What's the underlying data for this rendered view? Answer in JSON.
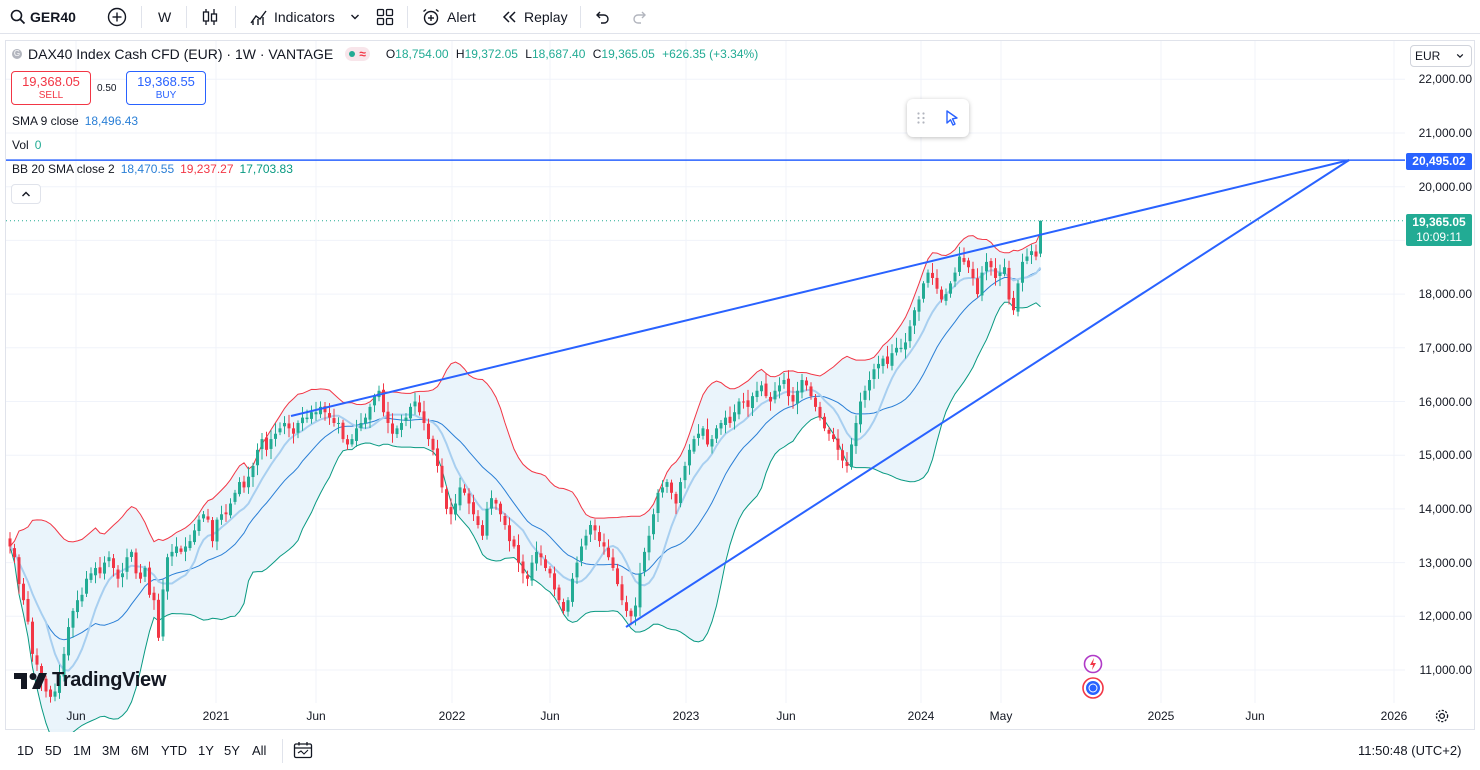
{
  "toolbar": {
    "symbol": "GER40",
    "interval": "W",
    "indicators_label": "Indicators",
    "alert_label": "Alert",
    "replay_label": "Replay"
  },
  "legend": {
    "instrument": "DAX40 Index Cash CFD (EUR) · 1W · VANTAGE",
    "status_wave": "≈",
    "ohlc": {
      "o_label": "O",
      "o_value": "18,754.00",
      "h_label": "H",
      "h_value": "19,372.05",
      "l_label": "L",
      "l_value": "18,687.40",
      "c_label": "C",
      "c_value": "19,365.05",
      "change": "+626.35 (+3.34%)"
    },
    "sell": {
      "price": "19,368.05",
      "label": "SELL"
    },
    "spread": "0.50",
    "buy": {
      "price": "19,368.55",
      "label": "BUY"
    },
    "sma": {
      "label": "SMA 9 close",
      "value": "18,496.43"
    },
    "vol": {
      "label": "Vol",
      "value": "0"
    },
    "bb": {
      "label": "BB 20 SMA close 2",
      "basis": "18,470.55",
      "upper": "19,237.27",
      "lower": "17,703.83"
    }
  },
  "price_scale": {
    "currency": "EUR",
    "ticks": [
      "22,000.00",
      "21,000.00",
      "20,000.00",
      "18,000.00",
      "17,000.00",
      "16,000.00",
      "15,000.00",
      "14,000.00",
      "13,000.00",
      "12,000.00",
      "11,000.00"
    ],
    "level_tag": "20,495.02",
    "last_price_tag": "19,365.05",
    "countdown": "10:09:11"
  },
  "time_axis": {
    "ticks": [
      "Jun",
      "2021",
      "Jun",
      "2022",
      "Jun",
      "2023",
      "Jun",
      "2024",
      "May",
      "2025",
      "Jun",
      "2026"
    ]
  },
  "bottom_bar": {
    "ranges": [
      "1D",
      "5D",
      "1M",
      "3M",
      "6M",
      "YTD",
      "1Y",
      "5Y",
      "All"
    ],
    "clock": "11:50:48 (UTC+2)"
  },
  "logo_text": "TradingView",
  "colors": {
    "up": "#22ab94",
    "down": "#f23645",
    "trendline": "#2962ff",
    "bb_upper": "#f23645",
    "bb_lower": "#089981",
    "bb_basis": "#2a7fd6",
    "sma": "#a8cff0",
    "bb_fill": "#e8f3fb"
  },
  "chart_data": {
    "type": "candlestick",
    "symbol": "DAX40 Index Cash CFD (EUR)",
    "interval": "1W",
    "ylim": [
      10700,
      22350
    ],
    "x_range": [
      "2020-05",
      "2026-01"
    ],
    "closes": [
      13300,
      13100,
      12600,
      12300,
      11900,
      11300,
      11100,
      10800,
      10600,
      10500,
      10600,
      10900,
      11300,
      11800,
      12100,
      12300,
      12400,
      12700,
      12800,
      12900,
      12800,
      13000,
      13100,
      12900,
      12700,
      12800,
      13100,
      13200,
      12800,
      12700,
      12900,
      12400,
      12300,
      11600,
      12500,
      13100,
      13200,
      13300,
      13200,
      13300,
      13400,
      13600,
      13800,
      13900,
      13800,
      13400,
      13800,
      13900,
      13900,
      14100,
      14300,
      14500,
      14400,
      14600,
      14800,
      15100,
      15300,
      15100,
      15300,
      15400,
      15500,
      15600,
      15500,
      15400,
      15600,
      15700,
      15700,
      15800,
      15800,
      15900,
      15800,
      15700,
      15600,
      15600,
      15300,
      15200,
      15300,
      15500,
      15600,
      15700,
      15900,
      16100,
      16200,
      15800,
      15600,
      15400,
      15500,
      15600,
      15700,
      15900,
      16000,
      15800,
      15600,
      15300,
      15100,
      14800,
      14400,
      14000,
      13900,
      14100,
      14400,
      14300,
      14100,
      13900,
      13700,
      13500,
      14000,
      14200,
      14100,
      13900,
      13700,
      13400,
      13300,
      13000,
      12800,
      12700,
      13000,
      13200,
      13100,
      12900,
      12800,
      12500,
      12300,
      12100,
      12300,
      12700,
      13000,
      13300,
      13500,
      13700,
      13600,
      13400,
      13300,
      13100,
      12900,
      12600,
      12300,
      12100,
      12000,
      12200,
      12800,
      13200,
      13500,
      13900,
      14300,
      14400,
      14500,
      14300,
      14100,
      14500,
      14800,
      15100,
      15300,
      15400,
      15500,
      15200,
      15300,
      15500,
      15600,
      15700,
      15600,
      15800,
      16000,
      16000,
      15900,
      16100,
      16200,
      16300,
      16100,
      16000,
      16200,
      16300,
      16400,
      16100,
      16000,
      16200,
      16400,
      16300,
      16100,
      15900,
      15700,
      15500,
      15400,
      15300,
      15100,
      14900,
      14800,
      15200,
      15600,
      16000,
      16200,
      16400,
      16600,
      16700,
      16800,
      16700,
      16900,
      17000,
      17000,
      17100,
      17400,
      17700,
      17900,
      18200,
      18400,
      18300,
      18100,
      17900,
      18000,
      18200,
      18400,
      18700,
      18600,
      18500,
      18300,
      18000,
      18400,
      18600,
      18500,
      18300,
      18400,
      18500,
      17900,
      17700,
      18200,
      18600,
      18700,
      18800,
      18700,
      19365.05
    ],
    "series": [
      {
        "name": "SMA 9 close",
        "last_value": 18496.43
      },
      {
        "name": "BB 20 SMA close 2 basis",
        "last_value": 18470.55
      },
      {
        "name": "BB upper",
        "last_value": 19237.27
      },
      {
        "name": "BB lower",
        "last_value": 17703.83
      }
    ],
    "trendlines": [
      {
        "from": [
          "2021-05",
          15750
        ],
        "to": [
          "2025-11",
          20495.02
        ]
      },
      {
        "from": [
          "2022-10",
          11850
        ],
        "to": [
          "2025-11",
          20495.02
        ]
      }
    ],
    "horizontal_line": 20495.02,
    "last_price": 19365.05
  }
}
